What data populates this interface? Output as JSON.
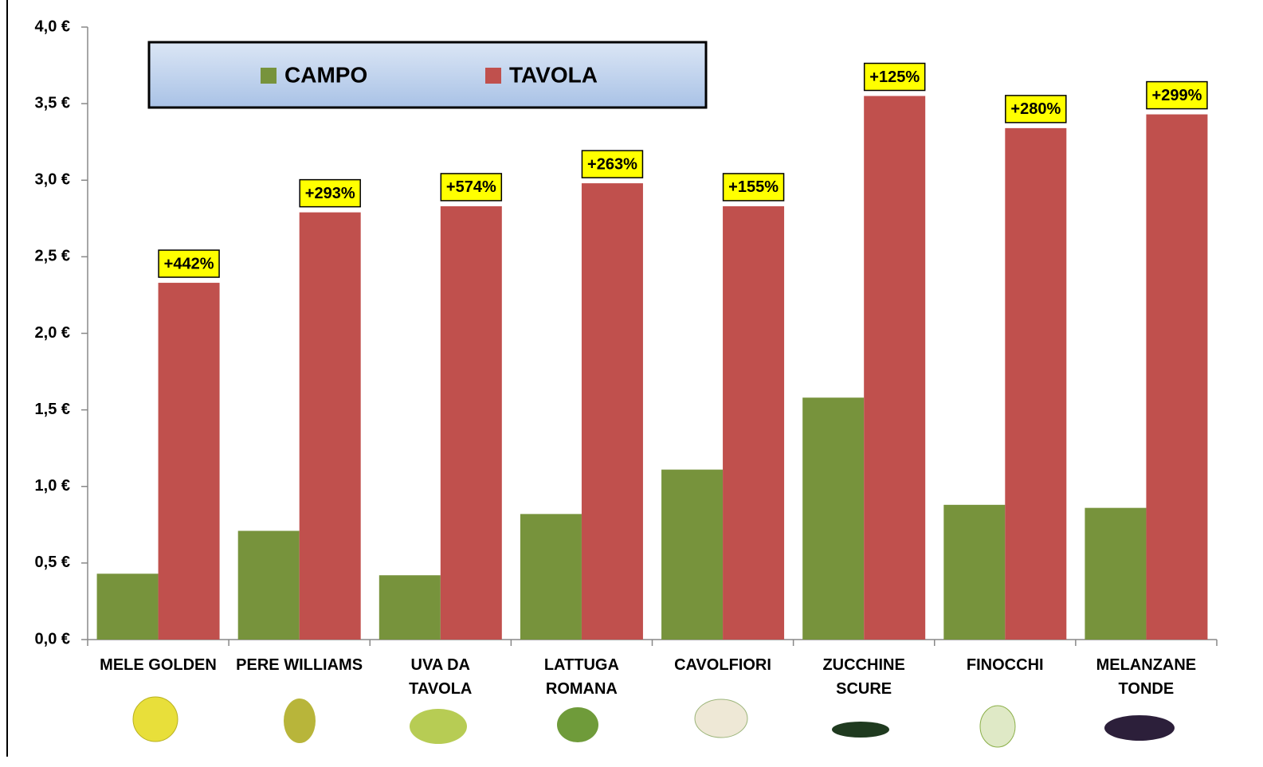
{
  "chart_data": {
    "type": "bar",
    "categories": [
      "MELE GOLDEN",
      "PERE WILLIAMS",
      "UVA DA\nTAVOLA",
      "LATTUGA\nROMANA",
      "CAVOLFIORI",
      "ZUCCHINE\nSCURE",
      "FINOCCHI",
      "MELANZANE\nTONDE"
    ],
    "series": [
      {
        "name": "CAMPO",
        "color": "#77933c",
        "values": [
          0.43,
          0.71,
          0.42,
          0.82,
          1.11,
          1.58,
          0.88,
          0.86
        ]
      },
      {
        "name": "TAVOLA",
        "color": "#c0504d",
        "values": [
          2.33,
          2.79,
          2.83,
          2.98,
          2.83,
          3.55,
          3.34,
          3.43
        ]
      }
    ],
    "annotations": [
      "+442%",
      "+293%",
      "+574%",
      "+263%",
      "+155%",
      "+125%",
      "+280%",
      "+299%"
    ],
    "ylim": [
      0,
      4
    ],
    "yticks": [
      {
        "value": 0,
        "label": "0,0 €"
      },
      {
        "value": 0.5,
        "label": "0,5 €"
      },
      {
        "value": 1,
        "label": "1,0 €"
      },
      {
        "value": 1.5,
        "label": "1,5 €"
      },
      {
        "value": 2,
        "label": "2,0 €"
      },
      {
        "value": 2.5,
        "label": "2,5 €"
      },
      {
        "value": 3,
        "label": "3,0 €"
      },
      {
        "value": 3.5,
        "label": "3,5 €"
      },
      {
        "value": 4,
        "label": "4,0 €"
      }
    ]
  }
}
